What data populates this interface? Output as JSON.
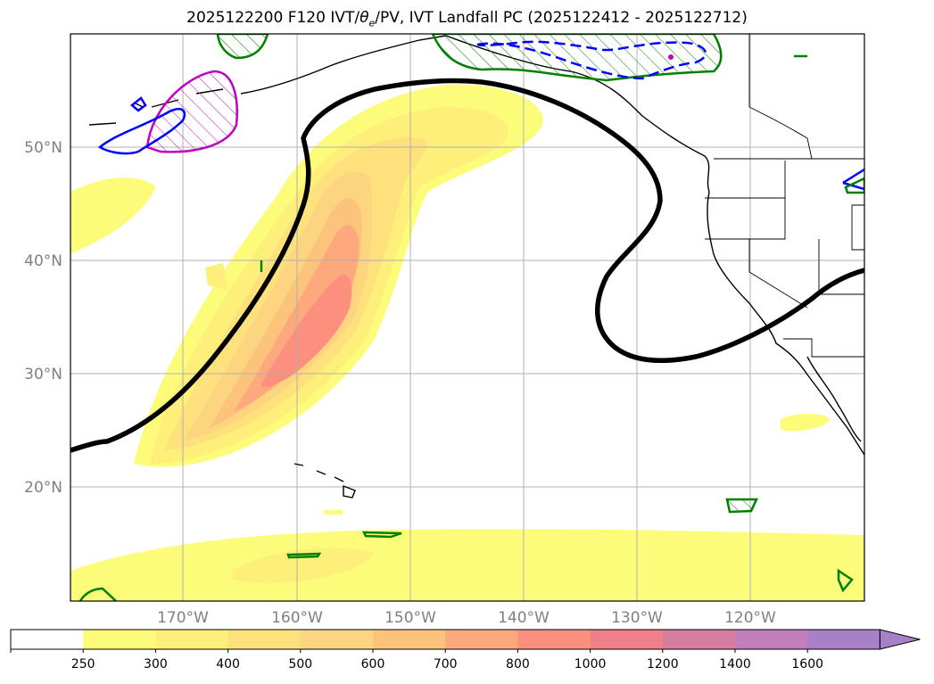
{
  "map": {
    "title_prefix": "2025122200 F120 IVT/",
    "title_theta": "θ",
    "title_sub": "e",
    "title_suffix": "/PV, IVT Landfall PC (2025122412 - 2025122712)",
    "lat_labels": [
      "50°N",
      "40°N",
      "30°N",
      "20°N"
    ],
    "lon_labels": [
      "170°W",
      "160°W",
      "150°W",
      "140°W",
      "130°W",
      "120°W"
    ],
    "colorbar": {
      "levels": [
        "250",
        "300",
        "400",
        "500",
        "600",
        "700",
        "800",
        "1000",
        "1200",
        "1400",
        "1600"
      ],
      "colors": [
        "#ffffff",
        "#fdfb7a",
        "#fdef7a",
        "#fee17c",
        "#fdd47f",
        "#fcc37d",
        "#fda87d",
        "#fd8f7f",
        "#ef7f88",
        "#d57ea0",
        "#c07fbb",
        "#a780c8"
      ]
    }
  }
}
